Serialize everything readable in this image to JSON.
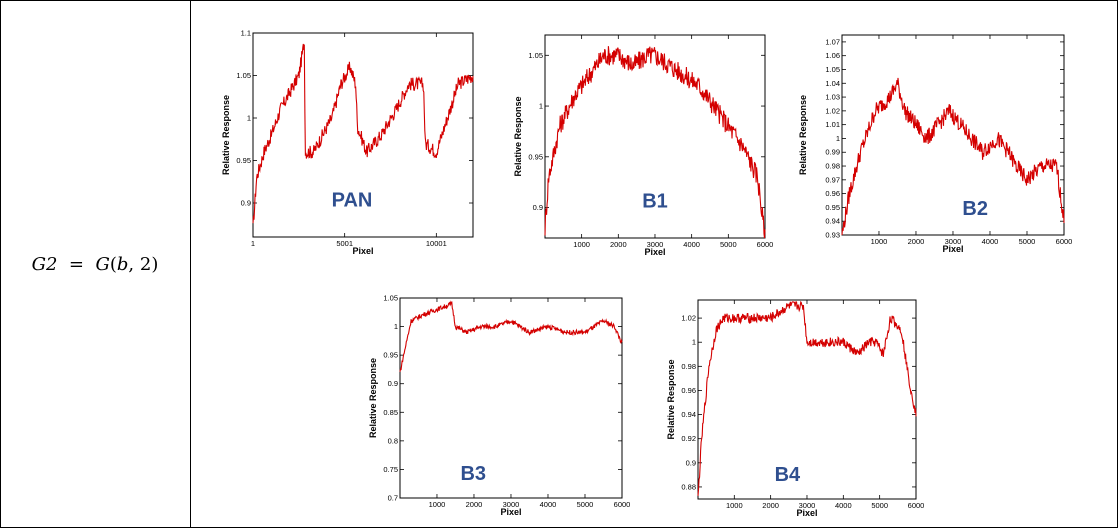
{
  "formula": {
    "lhs": "G2",
    "equals": "=",
    "func": "G",
    "arg1": "b",
    "arg2": "2"
  },
  "colors": {
    "series": "#d40000",
    "band_label": "#2f4f8f"
  },
  "chart_data": [
    {
      "type": "line",
      "band_label": "PAN",
      "xlabel": "Pixel",
      "ylabel": "Relative Response",
      "xlim": [
        1,
        12001
      ],
      "ylim": [
        0.86,
        1.1
      ],
      "xticks": [
        1,
        5001,
        10001
      ],
      "xtick_labels": [
        "1",
        "5001",
        "10001"
      ],
      "yticks": [
        0.9,
        0.95,
        1.0,
        1.05,
        1.1
      ],
      "ytick_labels": [
        "0.9",
        "0.95",
        "1",
        "1.05",
        "1.1"
      ],
      "noise": 0.008,
      "x": [
        1,
        200,
        600,
        1000,
        1500,
        2000,
        2500,
        2800,
        2850,
        3300,
        3800,
        4300,
        4800,
        5300,
        5600,
        5700,
        6200,
        7000,
        7800,
        8500,
        9300,
        9400,
        10000,
        10600,
        11200,
        12001
      ],
      "y": [
        0.87,
        0.93,
        0.96,
        0.98,
        1.01,
        1.03,
        1.05,
        1.09,
        0.96,
        0.96,
        0.98,
        1.0,
        1.04,
        1.06,
        1.04,
        0.99,
        0.96,
        0.98,
        1.01,
        1.04,
        1.04,
        0.97,
        0.96,
        1.0,
        1.04,
        1.05
      ]
    },
    {
      "type": "line",
      "band_label": "B1",
      "xlabel": "Pixel",
      "ylabel": "Relative Response",
      "xlim": [
        1,
        6000
      ],
      "ylim": [
        0.87,
        1.07
      ],
      "xticks": [
        1000,
        2000,
        3000,
        4000,
        5000,
        6000
      ],
      "xtick_labels": [
        "1000",
        "2000",
        "3000",
        "4000",
        "5000",
        "6000"
      ],
      "yticks": [
        0.9,
        0.95,
        1.0,
        1.05
      ],
      "ytick_labels": [
        "0.9",
        "0.95",
        "1",
        "1.05"
      ],
      "noise": 0.01,
      "x": [
        1,
        100,
        400,
        800,
        1200,
        1600,
        2000,
        2400,
        2800,
        3000,
        3400,
        3800,
        4200,
        4600,
        5000,
        5400,
        5800,
        6000
      ],
      "y": [
        0.88,
        0.93,
        0.98,
        1.01,
        1.03,
        1.05,
        1.05,
        1.04,
        1.05,
        1.05,
        1.04,
        1.03,
        1.02,
        1.0,
        0.98,
        0.96,
        0.93,
        0.87
      ]
    },
    {
      "type": "line",
      "band_label": "B2",
      "xlabel": "Pixel",
      "ylabel": "Relative Response",
      "xlim": [
        1,
        6000
      ],
      "ylim": [
        0.93,
        1.075
      ],
      "xticks": [
        1000,
        2000,
        3000,
        4000,
        5000,
        6000
      ],
      "xtick_labels": [
        "1000",
        "2000",
        "3000",
        "4000",
        "5000",
        "6000"
      ],
      "yticks": [
        0.93,
        0.94,
        0.95,
        0.96,
        0.97,
        0.98,
        0.99,
        1.0,
        1.01,
        1.02,
        1.03,
        1.04,
        1.05,
        1.06,
        1.07
      ],
      "ytick_labels": [
        "0.93",
        "0.94",
        "0.95",
        "0.96",
        "0.97",
        "0.98",
        "0.99",
        "1",
        "1.01",
        "1.02",
        "1.03",
        "1.04",
        "1.05",
        "1.06",
        "1.07"
      ],
      "noise": 0.006,
      "x": [
        1,
        200,
        500,
        900,
        1300,
        1500,
        1700,
        2000,
        2300,
        2600,
        2900,
        3200,
        3500,
        3800,
        4200,
        4500,
        4700,
        5000,
        5400,
        5800,
        6000
      ],
      "y": [
        0.93,
        0.96,
        0.99,
        1.02,
        1.03,
        1.04,
        1.02,
        1.01,
        1.0,
        1.01,
        1.02,
        1.01,
        1.0,
        0.99,
        1.0,
        0.99,
        0.98,
        0.97,
        0.98,
        0.98,
        0.94
      ]
    },
    {
      "type": "line",
      "band_label": "B3",
      "xlabel": "Pixel",
      "ylabel": "Relative Response",
      "xlim": [
        1,
        6000
      ],
      "ylim": [
        0.7,
        1.05
      ],
      "xticks": [
        1000,
        2000,
        3000,
        4000,
        5000,
        6000
      ],
      "xtick_labels": [
        "1000",
        "2000",
        "3000",
        "4000",
        "5000",
        "6000"
      ],
      "yticks": [
        0.7,
        0.75,
        0.8,
        0.85,
        0.9,
        0.95,
        1.0,
        1.05
      ],
      "ytick_labels": [
        "0.7",
        "0.75",
        "0.8",
        "0.85",
        "0.9",
        "0.95",
        "1",
        "1.05"
      ],
      "noise": 0.004,
      "x": [
        1,
        100,
        300,
        600,
        1000,
        1400,
        1500,
        1800,
        2200,
        2600,
        3000,
        3500,
        4000,
        4500,
        5000,
        5500,
        5800,
        6000
      ],
      "y": [
        0.92,
        0.95,
        1.01,
        1.02,
        1.03,
        1.04,
        1.0,
        0.99,
        1.0,
        1.0,
        1.01,
        0.99,
        1.0,
        0.99,
        0.99,
        1.01,
        1.0,
        0.97
      ]
    },
    {
      "type": "line",
      "band_label": "B4",
      "xlabel": "Pixel",
      "ylabel": "Relative Response",
      "xlim": [
        1,
        6000
      ],
      "ylim": [
        0.87,
        1.035
      ],
      "xticks": [
        1000,
        2000,
        3000,
        4000,
        5000,
        6000
      ],
      "xtick_labels": [
        "1000",
        "2000",
        "3000",
        "4000",
        "5000",
        "6000"
      ],
      "yticks": [
        0.88,
        0.9,
        0.92,
        0.94,
        0.96,
        0.98,
        1.0,
        1.02
      ],
      "ytick_labels": [
        "0.88",
        "0.9",
        "0.92",
        "0.94",
        "0.96",
        "0.98",
        "1",
        "1.02"
      ],
      "noise": 0.004,
      "x": [
        1,
        100,
        300,
        500,
        700,
        1000,
        1500,
        2000,
        2500,
        2900,
        3000,
        3500,
        4000,
        4400,
        4700,
        4900,
        5100,
        5300,
        5600,
        5800,
        6000
      ],
      "y": [
        0.87,
        0.92,
        0.98,
        1.01,
        1.02,
        1.02,
        1.02,
        1.02,
        1.03,
        1.03,
        1.0,
        1.0,
        1.0,
        0.99,
        1.0,
        1.0,
        0.99,
        1.02,
        1.01,
        0.97,
        0.94
      ]
    }
  ]
}
